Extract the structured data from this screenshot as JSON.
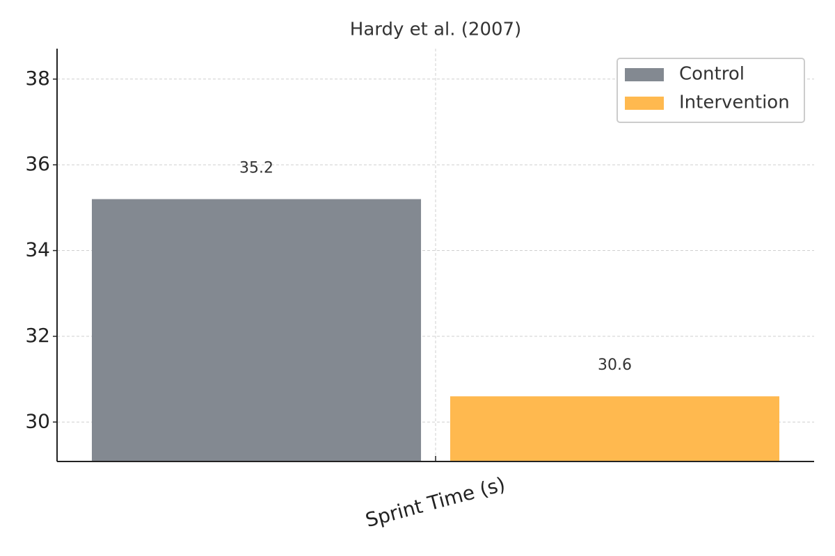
{
  "chart_data": {
    "type": "bar",
    "title": "Hardy et al. (2007)",
    "categories": [
      "Sprint Time (s)"
    ],
    "series": [
      {
        "name": "Control",
        "color": "#838991",
        "values": [
          35.2
        ]
      },
      {
        "name": "Intervention",
        "color": "#ffb94f",
        "values": [
          30.6
        ]
      }
    ],
    "ylim": [
      29.08,
      38.71
    ],
    "yticks": [
      30,
      32,
      34,
      36,
      38
    ],
    "grid": true,
    "legend": "upper right"
  }
}
